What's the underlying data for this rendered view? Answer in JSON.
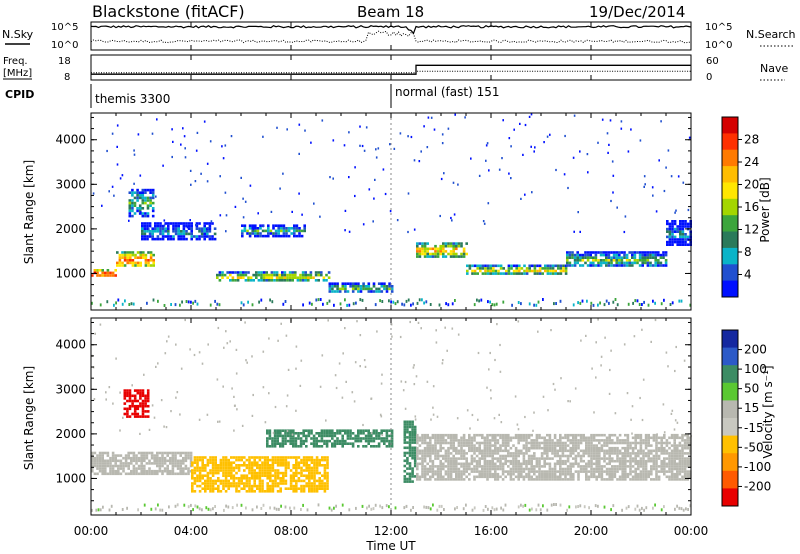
{
  "header": {
    "station": "Blackstone (fitACF)",
    "beam": "Beam 18",
    "date": "19/Dec/2014"
  },
  "noise_panel": {
    "left_label": "N.Sky",
    "right_label": "N.Search",
    "tick_top": "10^5",
    "tick_bottom": "10^0"
  },
  "freq_panel": {
    "label_line1": "Freq.",
    "label_line2": "[MHz]",
    "left_ticks": [
      "18",
      "8"
    ],
    "right_label": "Nave",
    "right_ticks": [
      "60",
      "0"
    ],
    "freq_steps": [
      {
        "start": 0.0,
        "end": 13.0,
        "value": 10.3
      },
      {
        "start": 13.0,
        "end": 24.0,
        "value": 14.5
      }
    ],
    "nave_steps": [
      {
        "start": 0.0,
        "end": 13.0,
        "value": 18
      },
      {
        "start": 13.0,
        "end": 24.0,
        "value": 22
      }
    ]
  },
  "cpid_panel": {
    "label": "CPID",
    "segments": [
      {
        "start_hour": 0.0,
        "text": "themis 3300"
      },
      {
        "start_hour": 12.0,
        "text": "normal (fast) 151"
      }
    ]
  },
  "power_panel": {
    "ylabel": "Slant Range [km]",
    "colorbar_label": "Power [dB]",
    "colorbar_ticks": [
      "28",
      "24",
      "20",
      "16",
      "12",
      "8",
      "4"
    ],
    "colors": [
      "#d40000",
      "#ff3000",
      "#ff7a00",
      "#ffbd00",
      "#ffe600",
      "#a4d600",
      "#3ca53c",
      "#2a7a5a",
      "#0ab4c8",
      "#2050d0",
      "#0010ff"
    ]
  },
  "velocity_panel": {
    "ylabel": "Slant Range [km]",
    "colorbar_label": "Velocity [m s⁻¹]",
    "colorbar_ticks": [
      "200",
      "100",
      "50",
      "15",
      "-15",
      "-50",
      "-100",
      "-200"
    ],
    "colors": [
      "#1428a0",
      "#2c5ac8",
      "#3c8c64",
      "#5ac832",
      "#b8b8b0",
      "#c8c8c0",
      "#ffc000",
      "#ff9800",
      "#ff5a00",
      "#e80000"
    ]
  },
  "y_ticks": [
    "4000",
    "3000",
    "2000",
    "1000"
  ],
  "x_ticks": [
    "00:00",
    "04:00",
    "08:00",
    "12:00",
    "16:00",
    "20:00",
    "00:00"
  ],
  "x_axis_label": "Time UT",
  "chart_data": {
    "type": "heatmap",
    "x_range_hours": [
      0,
      24
    ],
    "y_range_km": [
      180,
      4600
    ],
    "x_label": "Time UT",
    "y_label": "Slant Range [km]",
    "power_scattering_bands": [
      {
        "t0": 0.0,
        "t1": 1.0,
        "r0": 950,
        "r1": 1100,
        "value_db": 26
      },
      {
        "t0": 1.0,
        "t1": 2.5,
        "r0": 1150,
        "r1": 1500,
        "value_db": 22
      },
      {
        "t0": 1.5,
        "t1": 2.5,
        "r0": 2300,
        "r1": 2900,
        "value_db": 14
      },
      {
        "t0": 2.0,
        "t1": 5.0,
        "r0": 1750,
        "r1": 2150,
        "value_db": 10
      },
      {
        "t0": 5.0,
        "t1": 9.5,
        "r0": 850,
        "r1": 1050,
        "value_db": 18
      },
      {
        "t0": 6.0,
        "t1": 8.5,
        "r0": 1850,
        "r1": 2100,
        "value_db": 12
      },
      {
        "t0": 9.5,
        "t1": 12.0,
        "r0": 600,
        "r1": 800,
        "value_db": 14
      },
      {
        "t0": 13.0,
        "t1": 15.0,
        "r0": 1400,
        "r1": 1700,
        "value_db": 20
      },
      {
        "t0": 15.0,
        "t1": 19.0,
        "r0": 1000,
        "r1": 1200,
        "value_db": 18
      },
      {
        "t0": 19.0,
        "t1": 23.0,
        "r0": 1150,
        "r1": 1500,
        "value_db": 14
      },
      {
        "t0": 23.0,
        "t1": 24.0,
        "r0": 1650,
        "r1": 2200,
        "value_db": 10
      }
    ],
    "velocity_scattering_bands": [
      {
        "t0": 1.3,
        "t1": 2.3,
        "r0": 2400,
        "r1": 3000,
        "value_ms": -200
      },
      {
        "t0": 0.0,
        "t1": 4.0,
        "r0": 1100,
        "r1": 1600,
        "value_ms": 0
      },
      {
        "t0": 4.0,
        "t1": 9.5,
        "r0": 700,
        "r1": 1500,
        "value_ms": -60
      },
      {
        "t0": 7.0,
        "t1": 12.0,
        "r0": 1700,
        "r1": 2100,
        "value_ms": 50
      },
      {
        "t0": 12.5,
        "t1": 13.0,
        "r0": 900,
        "r1": 2300,
        "value_ms": 50
      },
      {
        "t0": 13.0,
        "t1": 24.0,
        "r0": 1000,
        "r1": 2000,
        "value_ms": 0
      }
    ],
    "sky_noise_power10_approx": 4.6,
    "search_noise_power10_approx": 1.3,
    "freq_steps_mhz": [
      {
        "start": 0.0,
        "end": 13.0,
        "value": 10.3
      },
      {
        "start": 13.0,
        "end": 24.0,
        "value": 14.5
      }
    ],
    "nave_steps": [
      {
        "start": 0.0,
        "end": 13.0,
        "value": 18
      },
      {
        "start": 13.0,
        "end": 24.0,
        "value": 22
      }
    ]
  }
}
